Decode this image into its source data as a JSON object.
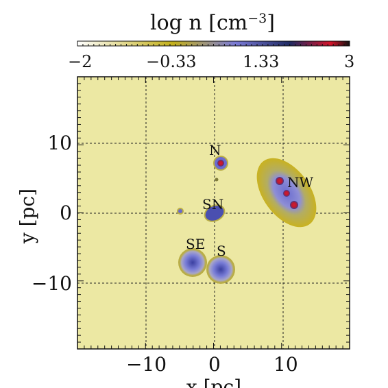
{
  "colorbar": {
    "title_main": "log n [cm",
    "title_exp": "−3",
    "title_close": "]",
    "ticks": [
      "−2",
      "−0.33",
      "1.33",
      "3"
    ],
    "range": [
      -2,
      3
    ],
    "colors": [
      "#ffffff",
      "#c9b51c",
      "#7a7acf",
      "#1f2a5a",
      "#cc1122",
      "#111111"
    ]
  },
  "axes": {
    "xlabel": "x [pc]",
    "ylabel": "y [pc]",
    "x_ticks": [
      "−10",
      "0",
      "10"
    ],
    "y_ticks": [
      "10",
      "0",
      "−10"
    ],
    "xlim": [
      -20,
      20
    ],
    "ylim": [
      -20,
      20
    ],
    "grid": true
  },
  "map": {
    "background_color": "#ece8a3",
    "regions": [
      {
        "name": "N",
        "x": 0.5,
        "y": 7.2
      },
      {
        "name": "NW",
        "x": 10.5,
        "y": 3.0
      },
      {
        "name": "SN",
        "x": -0.5,
        "y": 0.0
      },
      {
        "name": "SE",
        "x": -3.5,
        "y": -7.0
      },
      {
        "name": "S",
        "x": 0.5,
        "y": -8.0
      }
    ]
  }
}
